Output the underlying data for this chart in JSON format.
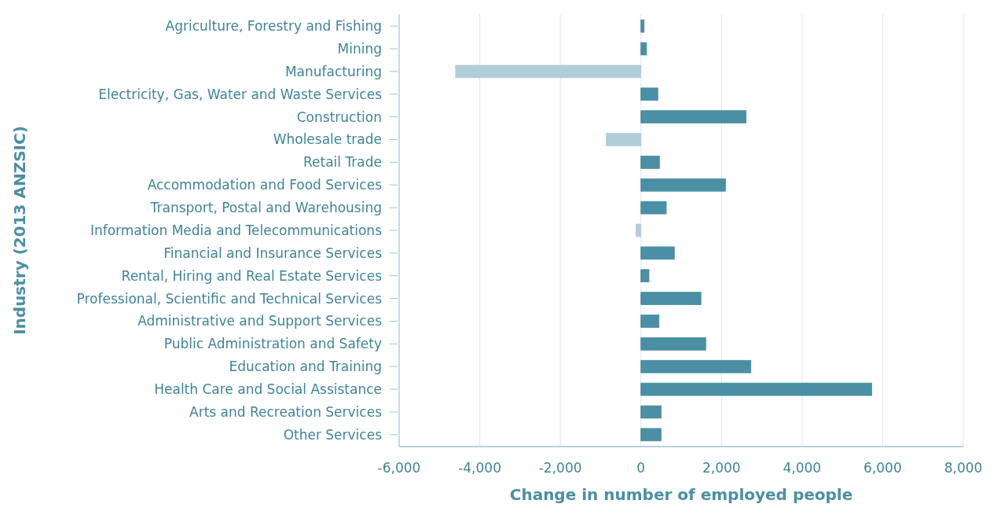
{
  "chart_data": {
    "type": "bar",
    "orientation": "horizontal",
    "xlabel": "Change in number of employed people",
    "ylabel": "Industry (2013 ANZSIC)",
    "categories": [
      "Agriculture, Forestry and Fishing",
      "Mining",
      "Manufacturing",
      "Electricity, Gas, Water and Waste Services",
      "Construction",
      "Wholesale trade",
      "Retail Trade",
      "Accommodation and Food Services",
      "Transport, Postal and Warehousing",
      "Information Media and Telecommunications",
      "Financial and Insurance Services",
      "Rental, Hiring and Real Estate Services",
      "Professional, Scientific and Technical Services",
      "Administrative and Support Services",
      "Public Administration and Safety",
      "Education and Training",
      "Health Care and Social Assistance",
      "Arts and Recreation Services",
      "Other Services"
    ],
    "values": [
      80,
      140,
      -4600,
      420,
      2610,
      -860,
      460,
      2100,
      630,
      -120,
      830,
      200,
      1490,
      450,
      1610,
      2730,
      5730,
      500,
      500
    ],
    "colors": [
      "#4a8fa3",
      "#4a8fa3",
      "#b1cdd7",
      "#4a8fa3",
      "#4a8fa3",
      "#b1cdd7",
      "#4a8fa3",
      "#4a8fa3",
      "#4a8fa3",
      "#b1cdd7",
      "#4a8fa3",
      "#4a8fa3",
      "#4a8fa3",
      "#4a8fa3",
      "#4a8fa3",
      "#4a8fa3",
      "#4a8fa3",
      "#4a8fa3",
      "#4a8fa3"
    ],
    "xlim": [
      -6000,
      8000
    ],
    "xticks": [
      {
        "value": -6000,
        "label": "-6,000"
      },
      {
        "value": -4000,
        "label": "-4,000"
      },
      {
        "value": -2000,
        "label": "-2,000"
      },
      0,
      {
        "value": 2000,
        "label": "2,000"
      },
      {
        "value": 4000,
        "label": "4,000"
      },
      {
        "value": 6000,
        "label": "6,000"
      },
      {
        "value": 8000,
        "label": "8,000"
      }
    ],
    "grid": "x"
  }
}
